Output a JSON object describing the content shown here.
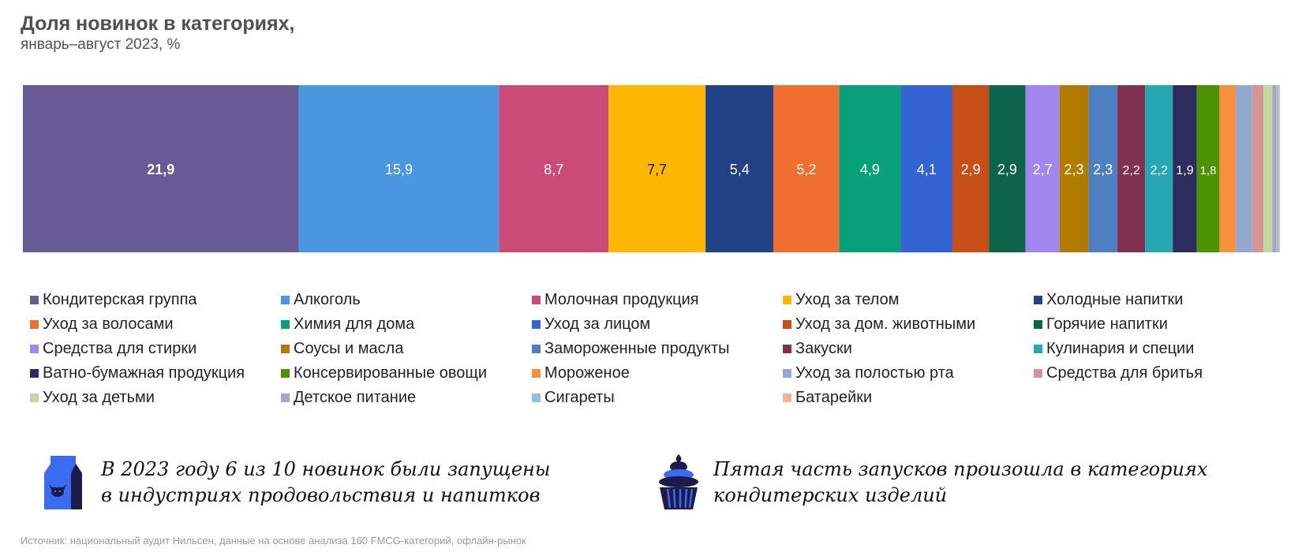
{
  "header": {
    "title": "Доля новинок в категориях,",
    "subtitle": "январь–август 2023, %"
  },
  "chart_data": {
    "type": "bar",
    "orientation": "stacked-horizontal-100",
    "title": "Доля новинок в категориях,",
    "subtitle": "январь–август 2023, %",
    "unit": "%",
    "legend_position": "bottom",
    "grid": false,
    "categories": [
      "Кондитерская группа",
      "Алкоголь",
      "Молочная продукция",
      "Уход за телом",
      "Холодные напитки",
      "Уход за волосами",
      "Химия для дома",
      "Уход за лицом",
      "Уход за дом. животными",
      "Горячие напитки",
      "Средства для стирки",
      "Соусы и масла",
      "Замороженные продукты",
      "Закуски",
      "Кулинария и специи",
      "Ватно-бумажная продукция",
      "Консервированные овощи",
      "Мороженое",
      "Уход за полостью рта",
      "Средства для бритья",
      "Уход за детьми",
      "Детское питание",
      "Сигареты",
      "Батарейки"
    ],
    "values": [
      21.9,
      15.9,
      8.7,
      7.7,
      5.4,
      5.2,
      4.9,
      4.1,
      2.9,
      2.9,
      2.7,
      2.3,
      2.3,
      2.2,
      2.2,
      1.9,
      1.8,
      1.3,
      1.3,
      0.9,
      0.7,
      0.3,
      0.2,
      0.1
    ],
    "data_labels": [
      "21,9",
      "15,9",
      "8,7",
      "7,7",
      "5,4",
      "5,2",
      "4,9",
      "4,1",
      "2,9",
      "2,9",
      "2,7",
      "2,3",
      "2,3",
      "2,2",
      "2,2",
      "1,9",
      "1,8",
      "",
      "",
      "",
      "",
      "",
      "",
      ""
    ],
    "colors": [
      "#685a94",
      "#4a96e0",
      "#ca4b77",
      "#ffb600",
      "#234286",
      "#ef6e30",
      "#07a07b",
      "#3464d4",
      "#c74e16",
      "#0e644a",
      "#a286f0",
      "#b17b00",
      "#4d7fc2",
      "#80314d",
      "#26a7b2",
      "#2d2c5e",
      "#4d9300",
      "#f7913f",
      "#93a8cf",
      "#d59597",
      "#bfd89e",
      "#ada2c2",
      "#92c0df",
      "#f4b596"
    ],
    "label_colors": [
      "#ffffff",
      "#ffffff",
      "#ffffff",
      "#111111",
      "#ffffff",
      "#ffffff",
      "#ffffff",
      "#ffffff",
      "#ffffff",
      "#ffffff",
      "#ffffff",
      "#ffffff",
      "#ffffff",
      "#ffffff",
      "#ffffff",
      "#ffffff",
      "#ffffff",
      "#ffffff",
      "#ffffff",
      "#ffffff",
      "#ffffff",
      "#ffffff",
      "#ffffff",
      "#ffffff"
    ]
  },
  "callouts": [
    {
      "icon": "milk-carton-icon",
      "text_line1": "В 2023 году 6 из 10 новинок были запущены",
      "text_line2": "в индустриях продовольствия и напитков"
    },
    {
      "icon": "cupcake-icon",
      "text_line1": "Пятая часть запусков произошла в категориях",
      "text_line2": "кондитерских изделий"
    }
  ],
  "icon_colors": {
    "dark": "#1c1c4a",
    "accent": "#3b6bf0"
  },
  "footer": {
    "source": "Источник: национальный аудит Нильсен, данные на основе анализа 160 FMCG-категорий, офлайн-рынок"
  }
}
